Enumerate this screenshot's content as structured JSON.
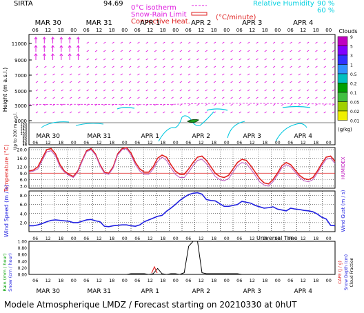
{
  "header": {
    "station": "SIRTA",
    "coords": "94.69",
    "isotherm_label": "0°C isotherm",
    "snow_rain_label": "Snow-Rain Limit",
    "convective_label": "Convective Heat.",
    "convective_unit": "(°C/minute)",
    "rh_label": "Relative Humidity",
    "rh_90": "90 %",
    "rh_60": "60 %"
  },
  "footer": {
    "caption": "Modele Atmospherique LMDZ / Forecast starting on 20210330 at 0hUT",
    "universal_time": "Universal Time"
  },
  "days": [
    "MAR 30",
    "MAR 31",
    "APR  1",
    "APR  2",
    "APR  3",
    "APR  4"
  ],
  "hours": [
    "06",
    "12",
    "18",
    "00"
  ],
  "cloud_colors": [
    "#c000c0",
    "#8000ff",
    "#3030ff",
    "#3090ff",
    "#00c0c0",
    "#00a000",
    "#40c040",
    "#a0d000",
    "#f0f000"
  ],
  "chart_data": [
    {
      "type": "heatmap",
      "title": "",
      "ylabel": "Height (m a.s.l.)",
      "ylabel2": "Up to 200 m a.g.l.",
      "yticks_upper": [
        "11000",
        "9000",
        "7000",
        "5000",
        "3000",
        "1000"
      ],
      "yticks_lower": [
        "180",
        "160",
        "140",
        "120",
        "100",
        "80",
        "60",
        "40",
        "20",
        "10"
      ],
      "legend_title": "Clouds",
      "legend_ticks": [
        "9",
        "5",
        "3",
        "1",
        "0.5",
        "0.2",
        "0.1",
        "0.05",
        "0.02",
        "0.01"
      ],
      "legend_unit": "(g/kg)",
      "wind_speeds": [
        8,
        8,
        9,
        9,
        9,
        4,
        4,
        4,
        4,
        4,
        4,
        4,
        4,
        4,
        4,
        4,
        4,
        4,
        4,
        4,
        4,
        4,
        4,
        4,
        4,
        4,
        4,
        4,
        4,
        4,
        4,
        4,
        4,
        4,
        4
      ]
    },
    {
      "type": "line",
      "ylabel": "Temperature (°C)",
      "ylabel2": "HUMIDEX",
      "yticks": [
        "20.0",
        "16.0",
        "12.0",
        "9.0",
        "6.0",
        "3.0"
      ],
      "ylim": [
        2,
        21
      ],
      "series": [
        {
          "values": [
            10,
            10.5,
            12,
            16,
            20,
            20.5,
            18,
            13,
            10,
            8.5,
            7.5,
            10,
            15,
            19.5,
            20.5,
            18,
            13,
            9.5,
            9,
            12,
            18,
            20.5,
            21,
            18.5,
            14,
            11,
            9.5,
            9.5,
            12,
            16,
            17.5,
            16.5,
            13,
            10,
            8.5,
            8.5,
            11,
            14,
            16.5,
            17,
            15,
            12,
            9,
            7.5,
            7,
            8,
            11,
            14,
            15.5,
            15,
            12.5,
            9.5,
            6.5,
            4.5,
            4,
            6,
            9,
            12.5,
            14,
            13,
            10.5,
            8,
            6.5,
            6,
            7,
            10,
            13.5,
            16.5,
            17,
            14.5
          ]
        },
        {
          "values": [
            9.5,
            10,
            11,
            15,
            19,
            19.5,
            17,
            12,
            9.5,
            8,
            7,
            9.5,
            14.5,
            19,
            20,
            17.5,
            12.5,
            9,
            8.5,
            11.5,
            17.5,
            20,
            20.5,
            17.5,
            13,
            10,
            8.5,
            8.5,
            11,
            14.5,
            16.5,
            15,
            11.5,
            8.5,
            7,
            7,
            9.5,
            12.5,
            15,
            15.5,
            13.5,
            10.5,
            7.5,
            6,
            5.5,
            6.5,
            9.5,
            12.5,
            14,
            13.5,
            11,
            8,
            5,
            3.5,
            3,
            5,
            8,
            11.5,
            13,
            12,
            9.5,
            7,
            5.5,
            5,
            6,
            9,
            12.5,
            15.5,
            16,
            13.5
          ]
        }
      ]
    },
    {
      "type": "line",
      "ylabel": "Wind Speed (m / s)",
      "ylabel2": "Wind Gust (m / s)",
      "yticks": [
        "8.0",
        "6.0",
        "4.0",
        "2.0"
      ],
      "ylim": [
        0,
        9
      ],
      "series": [
        {
          "values": [
            1.3,
            1.3,
            1.5,
            1.8,
            2.2,
            2.5,
            2.6,
            2.5,
            2.4,
            2.3,
            2.0,
            2.0,
            2.3,
            2.6,
            2.7,
            2.4,
            2.2,
            1.2,
            1.1,
            1.3,
            1.4,
            1.5,
            1.5,
            1.3,
            1.2,
            1.5,
            2.2,
            2.6,
            3.0,
            3.4,
            3.6,
            4.5,
            5.2,
            6.0,
            6.9,
            7.6,
            8.2,
            8.5,
            8.6,
            8.3,
            7.1,
            6.9,
            6.8,
            6.2,
            5.6,
            5.6,
            5.8,
            6.0,
            6.7,
            6.5,
            6.3,
            5.8,
            5.5,
            5.2,
            5.3,
            5.5,
            5.0,
            4.8,
            4.6,
            5.2,
            5.0,
            4.9,
            4.7,
            4.6,
            4.4,
            3.9,
            3.2,
            2.8,
            1.4,
            1.3
          ]
        }
      ]
    },
    {
      "type": "line",
      "ylabel": "Rain (mm / hour)",
      "ylabel2": "Snow (cm / hour)",
      "ylabel3": "CAPE (J / g)",
      "ylabel4": "Snow Depth (cm)",
      "ylabel5": "Cloud Fraction",
      "yticks": [
        "1.00",
        "0.80",
        "0.60",
        "0.40",
        "0.20",
        "0.00"
      ],
      "ylim": [
        0,
        1
      ],
      "series": [
        {
          "values": [
            0,
            0,
            0,
            0,
            0,
            0,
            0,
            0,
            0,
            0,
            0,
            0,
            0,
            0,
            0,
            0,
            0,
            0,
            0,
            0,
            0,
            0,
            0,
            0.02,
            0.02,
            0.02,
            0.02,
            0,
            0.02,
            0.18,
            0.02,
            0,
            0.02,
            0.02,
            0,
            0.05,
            0.85,
            1.0,
            1.0,
            0.05,
            0.02,
            0.02,
            0.02,
            0.02,
            0.02,
            0.02,
            0.02,
            0.02,
            0,
            0,
            0,
            0,
            0,
            0,
            0,
            0,
            0,
            0,
            0,
            0,
            0,
            0,
            0,
            0,
            0,
            0,
            0,
            0,
            0,
            0
          ]
        }
      ]
    }
  ]
}
